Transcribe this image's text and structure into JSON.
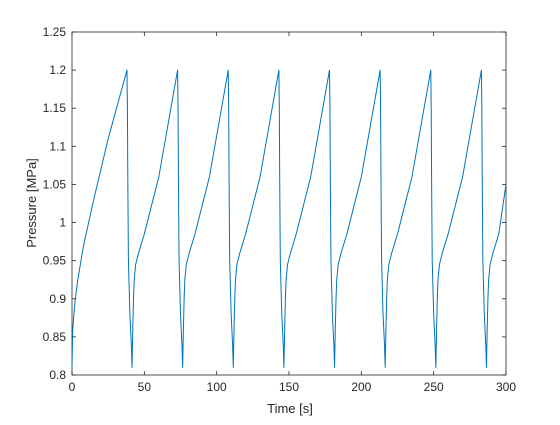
{
  "chart_data": {
    "type": "line",
    "title": "",
    "xlabel": "Time [s]",
    "ylabel": "Pressure [MPa]",
    "xlim": [
      0,
      300
    ],
    "ylim": [
      0.8,
      1.25
    ],
    "x_ticks": [
      0,
      50,
      100,
      150,
      200,
      250,
      300
    ],
    "y_ticks": [
      0.8,
      0.85,
      0.9,
      0.95,
      1.0,
      1.05,
      1.1,
      1.15,
      1.2,
      1.25
    ],
    "x_tick_labels": [
      "0",
      "50",
      "100",
      "150",
      "200",
      "250",
      "300"
    ],
    "y_tick_labels": [
      "0.8",
      "0.85",
      "0.9",
      "0.95",
      "1",
      "1.05",
      "1.1",
      "1.15",
      "1.2",
      "1.25"
    ],
    "grid": false,
    "legend": "none",
    "line_color": "#0072BD",
    "series": [
      {
        "x": [
          0,
          0.5,
          2,
          4,
          8,
          15,
          25,
          38,
          38.3,
          38.6,
          39,
          40,
          41,
          41.5,
          42,
          42.5,
          43,
          44,
          46,
          50,
          60,
          73,
          73.3,
          73.6,
          74,
          75,
          76,
          76.5,
          77,
          77.5,
          78,
          79,
          81,
          85,
          95,
          108,
          108.3,
          108.6,
          109,
          110,
          111,
          111.5,
          112,
          112.5,
          113,
          114,
          116,
          120,
          130,
          143,
          143.3,
          143.6,
          144,
          145,
          146,
          146.5,
          147,
          147.5,
          148,
          149,
          151,
          155,
          165,
          178,
          178.3,
          178.6,
          179,
          180,
          181,
          181.5,
          182,
          182.5,
          183,
          184,
          186,
          190,
          200,
          213,
          213.3,
          213.6,
          214,
          215,
          216,
          216.5,
          217,
          217.5,
          218,
          219,
          221,
          225,
          235,
          248,
          248.3,
          248.6,
          249,
          250,
          251,
          251.5,
          252,
          252.5,
          253,
          254,
          256,
          260,
          270,
          283,
          283.3,
          283.6,
          284,
          285,
          286,
          286.5,
          287,
          287.5,
          288,
          289,
          291,
          295,
          300
        ],
        "y": [
          0.81,
          0.86,
          0.895,
          0.925,
          0.97,
          1.03,
          1.11,
          1.2,
          1.15,
          1.05,
          0.95,
          0.88,
          0.84,
          0.81,
          0.86,
          0.9,
          0.925,
          0.945,
          0.96,
          0.985,
          1.06,
          1.2,
          1.15,
          1.05,
          0.95,
          0.88,
          0.84,
          0.81,
          0.86,
          0.9,
          0.925,
          0.945,
          0.96,
          0.985,
          1.06,
          1.2,
          1.15,
          1.05,
          0.95,
          0.88,
          0.84,
          0.81,
          0.86,
          0.9,
          0.925,
          0.945,
          0.96,
          0.985,
          1.06,
          1.2,
          1.15,
          1.05,
          0.95,
          0.88,
          0.84,
          0.81,
          0.86,
          0.9,
          0.925,
          0.945,
          0.96,
          0.985,
          1.06,
          1.2,
          1.15,
          1.05,
          0.95,
          0.88,
          0.84,
          0.81,
          0.86,
          0.9,
          0.925,
          0.945,
          0.96,
          0.985,
          1.06,
          1.2,
          1.15,
          1.05,
          0.95,
          0.88,
          0.84,
          0.81,
          0.86,
          0.9,
          0.925,
          0.945,
          0.96,
          0.985,
          1.06,
          1.2,
          1.15,
          1.05,
          0.95,
          0.88,
          0.84,
          0.81,
          0.86,
          0.9,
          0.925,
          0.945,
          0.96,
          0.985,
          1.06,
          1.2,
          1.15,
          1.05,
          0.95,
          0.88,
          0.84,
          0.81,
          0.86,
          0.9,
          0.925,
          0.945,
          0.96,
          0.985,
          1.05
        ]
      }
    ]
  }
}
